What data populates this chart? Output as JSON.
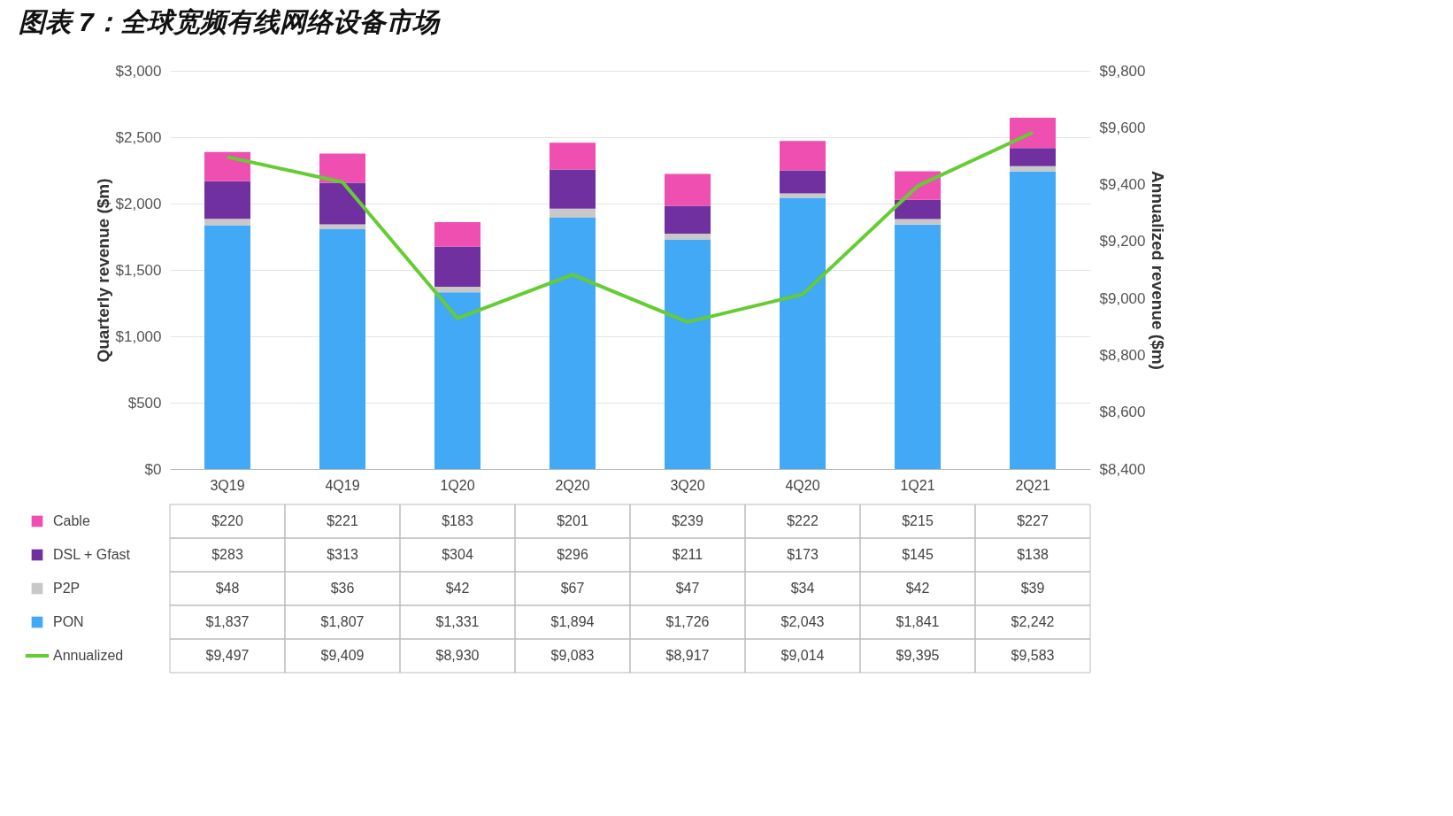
{
  "chart_data": {
    "type": "bar",
    "title": "图表 7：全球宽频有线网络设备市场",
    "ylabel": "Quarterly revenue ($m)",
    "y2label": "Annualized revenue ($m)",
    "categories": [
      "3Q19",
      "4Q19",
      "1Q20",
      "2Q20",
      "3Q20",
      "4Q20",
      "1Q21",
      "2Q21"
    ],
    "stacked": true,
    "grid": "y",
    "legend": "bottom",
    "ylim": [
      0,
      3000
    ],
    "yticks": [
      {
        "value": 0,
        "label": "$0"
      },
      {
        "value": 500,
        "label": "$500"
      },
      {
        "value": 1000,
        "label": "$1,000"
      },
      {
        "value": 1500,
        "label": "$1,500"
      },
      {
        "value": 2000,
        "label": "$2,000"
      },
      {
        "value": 2500,
        "label": "$2,500"
      },
      {
        "value": 3000,
        "label": "$3,000"
      }
    ],
    "y2lim": [
      8400,
      9800
    ],
    "y2ticks": [
      {
        "value": 8400,
        "label": "$8,400"
      },
      {
        "value": 8600,
        "label": "$8,600"
      },
      {
        "value": 8800,
        "label": "$8,800"
      },
      {
        "value": 9000,
        "label": "$9,000"
      },
      {
        "value": 9200,
        "label": "$9,200"
      },
      {
        "value": 9400,
        "label": "$9,400"
      },
      {
        "value": 9600,
        "label": "$9,600"
      },
      {
        "value": 9800,
        "label": "$9,800"
      }
    ],
    "series": [
      {
        "name": "PON",
        "color": "#41a9f5",
        "values": [
          1837,
          1807,
          1331,
          1894,
          1726,
          2043,
          1841,
          2242
        ],
        "value_labels": [
          "$1,837",
          "$1,807",
          "$1,331",
          "$1,894",
          "$1,726",
          "$2,043",
          "$1,841",
          "$2,242"
        ]
      },
      {
        "name": "P2P",
        "color": "#c8c8c8",
        "values": [
          48,
          36,
          42,
          67,
          47,
          34,
          42,
          39
        ],
        "value_labels": [
          "$48",
          "$36",
          "$42",
          "$67",
          "$47",
          "$34",
          "$42",
          "$39"
        ]
      },
      {
        "name": "DSL + Gfast",
        "color": "#7030a0",
        "values": [
          283,
          313,
          304,
          296,
          211,
          173,
          145,
          138
        ],
        "value_labels": [
          "$283",
          "$313",
          "$304",
          "$296",
          "$211",
          "$173",
          "$145",
          "$138"
        ]
      },
      {
        "name": "Cable",
        "color": "#ee4fb0",
        "values": [
          220,
          221,
          183,
          201,
          239,
          222,
          215,
          227
        ],
        "value_labels": [
          "$220",
          "$221",
          "$183",
          "$201",
          "$239",
          "$222",
          "$215",
          "$227"
        ]
      },
      {
        "name": "Annualized",
        "type": "line",
        "axis": "y2",
        "color": "#66cc33",
        "marker": "none",
        "values": [
          9497,
          9409,
          8930,
          9083,
          8917,
          9014,
          9395,
          9583
        ],
        "value_labels": [
          "$9,497",
          "$9,409",
          "$8,930",
          "$9,083",
          "$8,917",
          "$9,014",
          "$9,395",
          "$9,583"
        ]
      }
    ]
  }
}
